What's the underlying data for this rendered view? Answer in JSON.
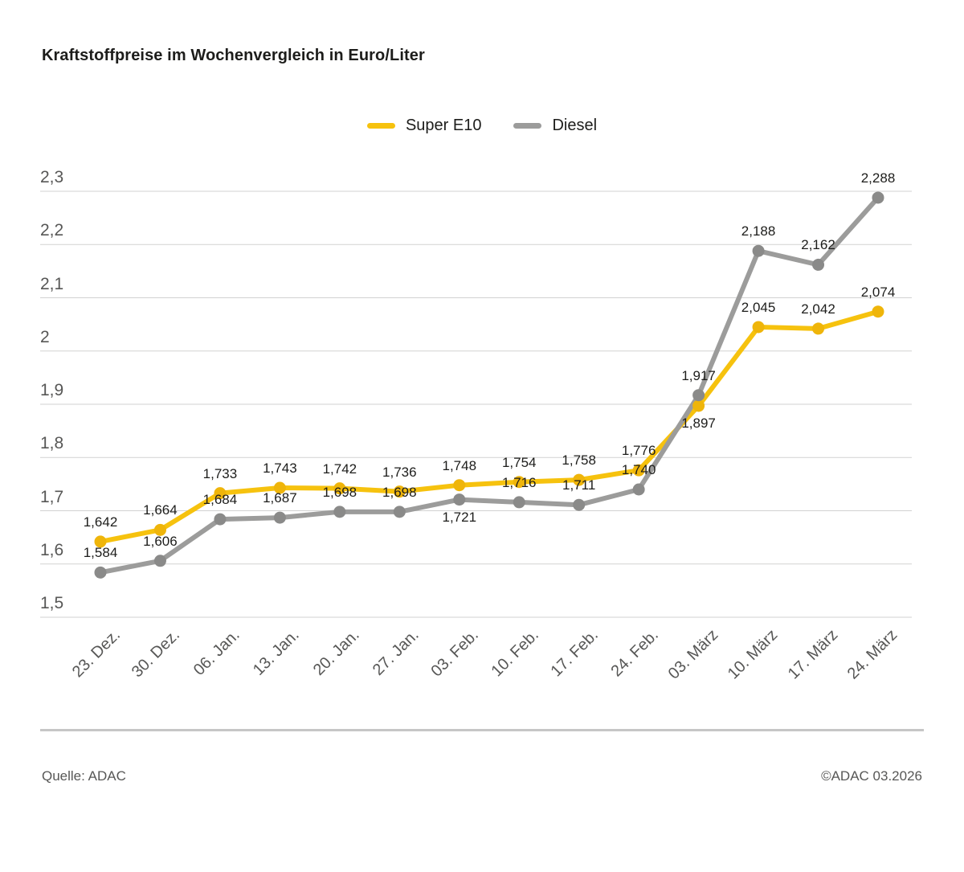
{
  "title": "Kraftstoffpreise im Wochenvergleich in Euro/Liter",
  "legend": [
    {
      "label": "Super E10",
      "color": "#F6C20E"
    },
    {
      "label": "Diesel",
      "color": "#9C9C9B"
    }
  ],
  "footer": {
    "source": "Quelle: ADAC",
    "copyright": "©ADAC 03.2026"
  },
  "colors": {
    "background": "#FFFFFF",
    "title_text": "#1D1D1B",
    "axis_label": "#575756",
    "data_label": "#1D1D1B",
    "grid": "#D2D2D1",
    "divider": "#C6C6C6",
    "super_e10_line": "#F6C20E",
    "super_e10_dot": "#EFB50A",
    "diesel_line": "#9C9C9B",
    "diesel_dot": "#8A8A89"
  },
  "chart_data": {
    "type": "line",
    "title": "Kraftstoffpreise im Wochenvergleich in Euro/Liter",
    "xlabel": "",
    "ylabel": "Euro/Liter",
    "grid": true,
    "legend_position": "top-center",
    "ylim": [
      1.5,
      2.3
    ],
    "yticks": [
      1.5,
      1.6,
      1.7,
      1.8,
      1.9,
      2.0,
      2.1,
      2.2,
      2.3
    ],
    "ytick_labels": [
      "1,5",
      "1,6",
      "1,7",
      "1,8",
      "1,9",
      "2",
      "2,1",
      "2,2",
      "2,3"
    ],
    "categories": [
      "23. Dez.",
      "30. Dez.",
      "06. Jan.",
      "13. Jan.",
      "20. Jan.",
      "27. Jan.",
      "03. Feb.",
      "10. Feb.",
      "17. Feb.",
      "24. Feb.",
      "03. März",
      "10. März",
      "17. März",
      "24. März"
    ],
    "series": [
      {
        "name": "Super E10",
        "color": "#F6C20E",
        "dot_color": "#EFB50A",
        "values": [
          1.642,
          1.664,
          1.733,
          1.743,
          1.742,
          1.736,
          1.748,
          1.754,
          1.758,
          1.776,
          1.897,
          2.045,
          2.042,
          2.074
        ],
        "labels": [
          "1,642",
          "1,664",
          "1,733",
          "1,743",
          "1,742",
          "1,736",
          "1,748",
          "1,754",
          "1,758",
          "1,776",
          "1,897",
          "2,045",
          "2,042",
          "2,074"
        ],
        "label_below": [
          10
        ]
      },
      {
        "name": "Diesel",
        "color": "#9C9C9B",
        "dot_color": "#8A8A89",
        "values": [
          1.584,
          1.606,
          1.684,
          1.687,
          1.698,
          1.698,
          1.721,
          1.716,
          1.711,
          1.74,
          1.917,
          2.188,
          2.162,
          2.288
        ],
        "labels": [
          "1,584",
          "1,606",
          "1,684",
          "1,687",
          "1,698",
          "1,698",
          "1,721",
          "1,716",
          "1,711",
          "1,740",
          "1,917",
          "2,188",
          "2,162",
          "2,288"
        ],
        "label_below": [
          6
        ]
      }
    ]
  }
}
